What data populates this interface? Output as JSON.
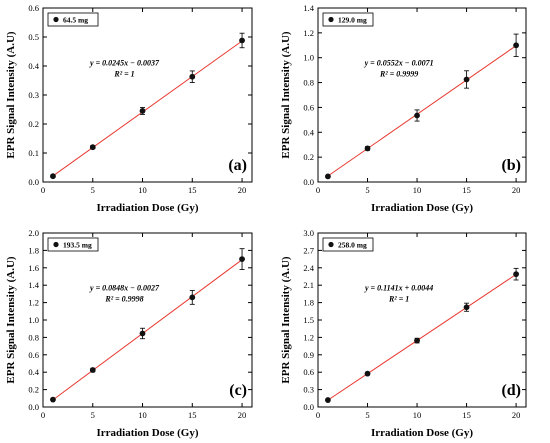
{
  "chart_data": [
    {
      "type": "scatter",
      "panel": "(a)",
      "xlabel": "Irradiation Dose (Gy)",
      "ylabel": "EPR Signal Intensity (A.U)",
      "xlim": [
        0,
        21
      ],
      "ylim": [
        0,
        0.6
      ],
      "xticks": [
        0,
        5,
        10,
        15,
        20
      ],
      "yticks": [
        0.0,
        0.1,
        0.2,
        0.3,
        0.4,
        0.5,
        0.6
      ],
      "ytick_labels": [
        "0.0",
        "0.1",
        "0.2",
        "0.3",
        "0.4",
        "0.5",
        "0.6"
      ],
      "legend": "64.5 mg",
      "equation": "y = 0.0245x − 0.0037",
      "r2": "R² = 1",
      "fit": {
        "slope": 0.0245,
        "intercept": -0.0037
      },
      "series": [
        {
          "x": [
            1,
            5,
            10,
            15,
            20
          ],
          "y": [
            0.02,
            0.12,
            0.245,
            0.363,
            0.488
          ],
          "err": [
            0.003,
            0.005,
            0.012,
            0.02,
            0.025
          ]
        }
      ]
    },
    {
      "type": "scatter",
      "panel": "(b)",
      "xlabel": "Irradiation Dose (Gy)",
      "ylabel": "EPR Signal Intensity (A.U)",
      "xlim": [
        0,
        21
      ],
      "ylim": [
        0,
        1.4
      ],
      "xticks": [
        0,
        5,
        10,
        15,
        20
      ],
      "yticks": [
        0.0,
        0.2,
        0.4,
        0.6,
        0.8,
        1.0,
        1.2,
        1.4
      ],
      "ytick_labels": [
        "0.0",
        "0.2",
        "0.4",
        "0.6",
        "0.8",
        "1.0",
        "1.2",
        "1.4"
      ],
      "legend": "129.0 mg",
      "equation": "y = 0.0552x − 0.0071",
      "r2": "R² = 0.9999",
      "fit": {
        "slope": 0.0552,
        "intercept": -0.0071
      },
      "series": [
        {
          "x": [
            1,
            5,
            10,
            15,
            20
          ],
          "y": [
            0.045,
            0.27,
            0.535,
            0.825,
            1.1
          ],
          "err": [
            0.005,
            0.015,
            0.045,
            0.07,
            0.09
          ]
        }
      ]
    },
    {
      "type": "scatter",
      "panel": "(c)",
      "xlabel": "Irradiation Dose (Gy)",
      "ylabel": "EPR Signal Intensity (A.U)",
      "xlim": [
        0,
        21
      ],
      "ylim": [
        0,
        2.0
      ],
      "xticks": [
        0,
        5,
        10,
        15,
        20
      ],
      "yticks": [
        0.0,
        0.2,
        0.4,
        0.6,
        0.8,
        1.0,
        1.2,
        1.4,
        1.6,
        1.8,
        2.0
      ],
      "ytick_labels": [
        "0.0",
        "0.2",
        "0.4",
        "0.6",
        "0.8",
        "1.0",
        "1.2",
        "1.4",
        "1.6",
        "1.8",
        "2.0"
      ],
      "legend": "193.5 mg",
      "equation": "y = 0.0848x − 0.0027",
      "r2": "R² = 0.9998",
      "fit": {
        "slope": 0.0848,
        "intercept": -0.0027
      },
      "series": [
        {
          "x": [
            1,
            5,
            10,
            15,
            20
          ],
          "y": [
            0.085,
            0.425,
            0.845,
            1.26,
            1.7
          ],
          "err": [
            0.008,
            0.02,
            0.06,
            0.08,
            0.12
          ]
        }
      ]
    },
    {
      "type": "scatter",
      "panel": "(d)",
      "xlabel": "Irradiation Dose (Gy)",
      "ylabel": "EPR Signal Intensity (A.U)",
      "xlim": [
        0,
        21
      ],
      "ylim": [
        0,
        3.0
      ],
      "xticks": [
        0,
        5,
        10,
        15,
        20
      ],
      "yticks": [
        0.0,
        0.3,
        0.6,
        0.9,
        1.2,
        1.5,
        1.8,
        2.1,
        2.4,
        2.7,
        3.0
      ],
      "ytick_labels": [
        "0.0",
        "0.3",
        "0.6",
        "0.9",
        "1.2",
        "1.5",
        "1.8",
        "2.1",
        "2.4",
        "2.7",
        "3.0"
      ],
      "legend": "258.0 mg",
      "equation": "y = 0.1141x + 0.0044",
      "r2": "R² = 1",
      "fit": {
        "slope": 0.1141,
        "intercept": 0.0044
      },
      "series": [
        {
          "x": [
            1,
            5,
            10,
            15,
            20
          ],
          "y": [
            0.12,
            0.575,
            1.145,
            1.72,
            2.29
          ],
          "err": [
            0.01,
            0.02,
            0.04,
            0.07,
            0.1
          ]
        }
      ]
    }
  ],
  "colors": {
    "fit_line": "#e8392f",
    "marker": "#111111",
    "axis": "#000000"
  }
}
